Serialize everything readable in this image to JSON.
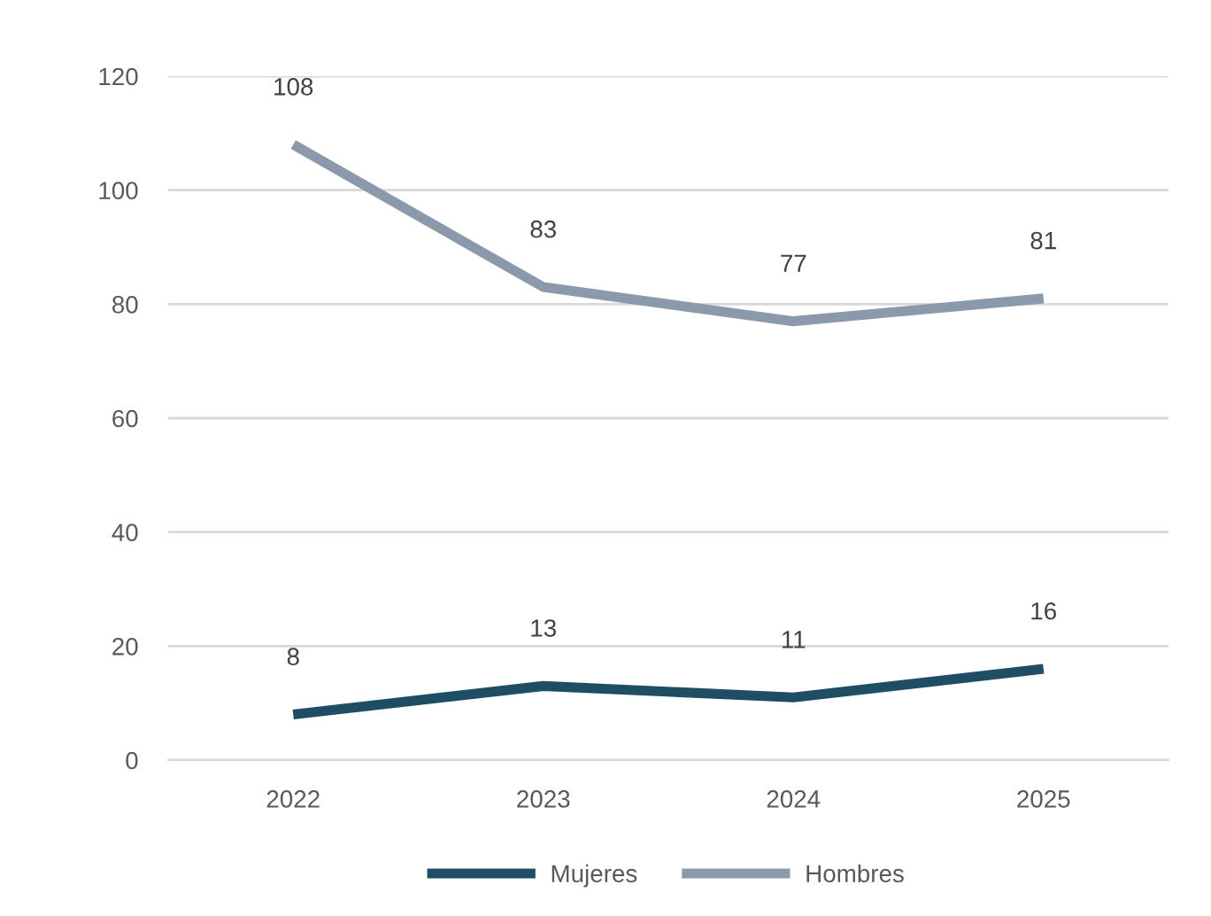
{
  "chart_data": {
    "type": "line",
    "categories": [
      "2022",
      "2023",
      "2024",
      "2025"
    ],
    "series": [
      {
        "name": "Mujeres",
        "color": "#1d4e64",
        "values": [
          8,
          13,
          11,
          16
        ]
      },
      {
        "name": "Hombres",
        "color": "#8a9aab",
        "values": [
          108,
          83,
          77,
          81
        ]
      }
    ],
    "ylim": [
      0,
      120
    ],
    "yticks": [
      0,
      20,
      40,
      60,
      80,
      100,
      120
    ],
    "grid": "y",
    "legend": "bottom",
    "data_labels": true,
    "marker": "none",
    "line_style": "solid"
  }
}
